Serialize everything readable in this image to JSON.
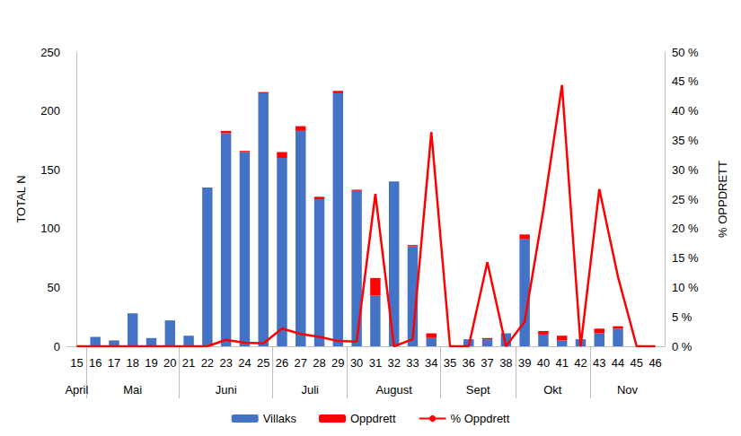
{
  "chart_data": {
    "type": "bar",
    "stacked": true,
    "grid": false,
    "legend": "bottom",
    "y_label": "TOTAL N",
    "y2_label": "% OPPDRETT",
    "categories": [
      "15",
      "16",
      "17",
      "18",
      "19",
      "20",
      "21",
      "22",
      "23",
      "24",
      "25",
      "26",
      "27",
      "28",
      "29",
      "30",
      "31",
      "32",
      "33",
      "34",
      "35",
      "36",
      "37",
      "38",
      "39",
      "40",
      "41",
      "42",
      "43",
      "44",
      "45",
      "46"
    ],
    "month_groups": [
      {
        "label": "April",
        "first": "15",
        "last": "15"
      },
      {
        "label": "Mai",
        "first": "16",
        "last": "20"
      },
      {
        "label": "Juni",
        "first": "21",
        "last": "25"
      },
      {
        "label": "Juli",
        "first": "26",
        "last": "29"
      },
      {
        "label": "August",
        "first": "30",
        "last": "34"
      },
      {
        "label": "Sept",
        "first": "35",
        "last": "38"
      },
      {
        "label": "Okt",
        "first": "39",
        "last": "42"
      },
      {
        "label": "Nov",
        "first": "43",
        "last": "46"
      }
    ],
    "ylim": [
      0,
      250
    ],
    "yticks": [
      0,
      50,
      100,
      150,
      200,
      250
    ],
    "y2lim": [
      0,
      50
    ],
    "y2ticks": [
      {
        "value": 0,
        "label": "0 %"
      },
      {
        "value": 5,
        "label": "5 %"
      },
      {
        "value": 10,
        "label": "10 %"
      },
      {
        "value": 15,
        "label": "15 %"
      },
      {
        "value": 20,
        "label": "20 %"
      },
      {
        "value": 25,
        "label": "25 %"
      },
      {
        "value": 30,
        "label": "30 %"
      },
      {
        "value": 35,
        "label": "35 %"
      },
      {
        "value": 40,
        "label": "40 %"
      },
      {
        "value": 45,
        "label": "45 %"
      },
      {
        "value": 50,
        "label": "50 %"
      }
    ],
    "series": [
      {
        "name": "Villaks",
        "type": "bar",
        "color": "#4472c4",
        "values": [
          0,
          8,
          5,
          28,
          7,
          22,
          9,
          135,
          181,
          165,
          215,
          160,
          183,
          125,
          215,
          132,
          43,
          140,
          85,
          7,
          0,
          6,
          6,
          11,
          91,
          10,
          5,
          6,
          11,
          15,
          0,
          0
        ]
      },
      {
        "name": "Oppdrett",
        "type": "bar",
        "color": "#ff0000",
        "values": [
          0,
          0,
          0,
          0,
          0,
          0,
          0,
          0,
          2,
          1,
          1,
          5,
          4,
          2,
          2,
          1,
          15,
          0,
          1,
          4,
          0,
          0,
          1,
          0,
          4,
          3,
          4,
          0,
          4,
          2,
          0,
          0
        ]
      },
      {
        "name": "% Oppdrett",
        "type": "line",
        "axis": "y2",
        "color": "#ff0000",
        "marker": "none",
        "line_style": "solid",
        "values": [
          0,
          0,
          0,
          0,
          0,
          0,
          0,
          0,
          1.1,
          0.6,
          0.5,
          3.0,
          2.1,
          1.6,
          0.9,
          0.8,
          25.9,
          0,
          1.2,
          36.4,
          0,
          0,
          14.3,
          0,
          4.2,
          23.1,
          44.4,
          0,
          26.7,
          11.8,
          0,
          0
        ]
      }
    ]
  }
}
